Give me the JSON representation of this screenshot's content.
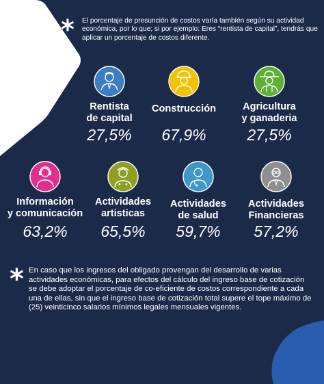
{
  "intro_text": "El porcentaje de presunción de costos varía también según su actividad económica, por lo que; si por ejemplo: Eres “rentista de capital”, tendrás que aplicar un porcentaje de costos diferente.",
  "asterisk": "*",
  "colors": {
    "background": "#1c2a4a",
    "white_shape": "#ffffff",
    "blue_shape": "#2a5cae",
    "icon_blue": "#3c7dc4",
    "icon_yellow": "#f2c200",
    "icon_green": "#5eb135",
    "icon_magenta": "#e22f8e",
    "icon_olive": "#8ea024",
    "icon_teal": "#3b98c9",
    "icon_gray": "#8f8f8f"
  },
  "activities": [
    {
      "label": "Rentista\nde capital",
      "percentage": "27,5%",
      "icon": "businessman-icon",
      "color": "#3c7dc4"
    },
    {
      "label": "Construcción",
      "percentage": "67,9%",
      "icon": "construction-worker-icon",
      "color": "#f2c200"
    },
    {
      "label": "Agricultura\ny ganaderia",
      "percentage": "27,5%",
      "icon": "farmer-icon",
      "color": "#5eb135"
    },
    {
      "label": "Información\ny comunicación",
      "percentage": "63,2%",
      "icon": "communicator-icon",
      "color": "#e22f8e"
    },
    {
      "label": "Actividades\nartisticas",
      "percentage": "65,5%",
      "icon": "artist-icon",
      "color": "#8ea024"
    },
    {
      "label": "Actividades\nde salud",
      "percentage": "59,7%",
      "icon": "doctor-icon",
      "color": "#3b98c9"
    },
    {
      "label": "Actividades\nFinancieras",
      "percentage": "57,2%",
      "icon": "financier-icon",
      "color": "#8f8f8f"
    }
  ],
  "footer_text": "En caso que los ingresos del obligado provengan del desarrollo de varias actividades económicas, para efectos del cálculo del ingreso base de cotización se debe adoptar el porcentaje de co-eficiente de costos correspondiente a cada una de ellas, sin que el ingreso base de cotización total supere el tope máximo de (25) veinticinco salarios mínimos legales mensuales vigentes."
}
